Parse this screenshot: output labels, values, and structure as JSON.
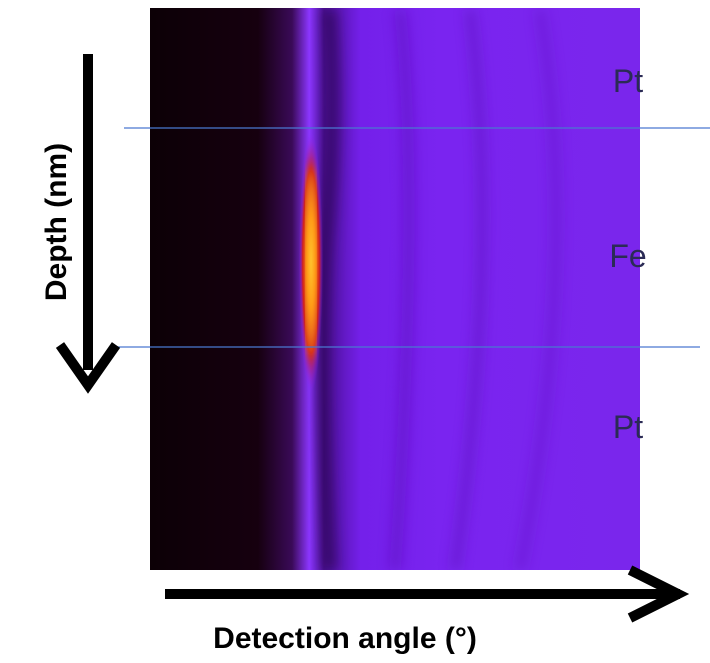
{
  "figure": {
    "layers": [
      "Pt",
      "Fe",
      "Pt"
    ],
    "y_axis_label": "Depth (nm)",
    "x_axis_label": "Detection angle (°)"
  }
}
